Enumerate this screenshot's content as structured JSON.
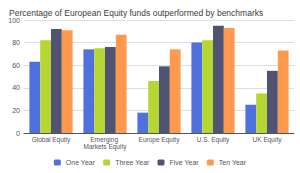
{
  "chart_data": {
    "type": "bar",
    "title": "Percentage of European Equity funds outperformed by benchmarks",
    "categories": [
      "Global Equity",
      "Emerging Markets Equity",
      "Europe Equity",
      "U.S. Equity",
      "UK Equity"
    ],
    "series": [
      {
        "name": "One Year",
        "values": [
          63,
          74,
          18,
          80,
          25
        ]
      },
      {
        "name": "Three Year",
        "values": [
          82,
          75,
          46,
          82,
          35
        ]
      },
      {
        "name": "Five Year",
        "values": [
          92,
          76,
          59,
          95,
          55
        ]
      },
      {
        "name": "Ten Year",
        "values": [
          91,
          87,
          74,
          93,
          73
        ]
      }
    ],
    "ylim": [
      0,
      100
    ],
    "yticks": [
      0,
      20,
      40,
      60,
      80,
      100
    ],
    "grid": true,
    "legend": "bottom"
  }
}
